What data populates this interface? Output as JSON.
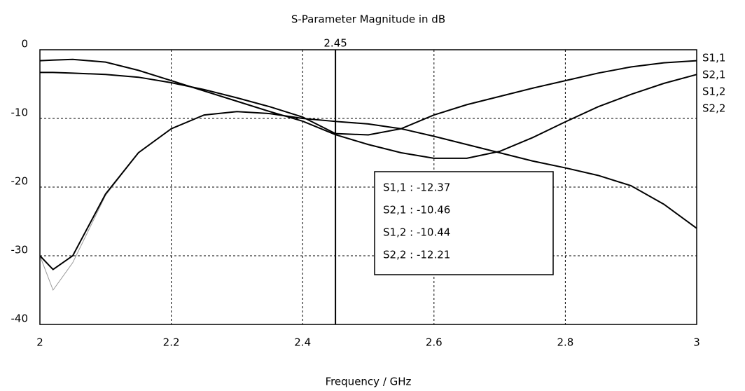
{
  "chart_data": {
    "type": "line",
    "title": "S-Parameter Magnitude in dB",
    "xlabel": "Frequency / GHz",
    "x": [
      2,
      2.02,
      2.05,
      2.1,
      2.15,
      2.2,
      2.25,
      2.3,
      2.35,
      2.4,
      2.45,
      2.5,
      2.55,
      2.6,
      2.65,
      2.7,
      2.75,
      2.8,
      2.85,
      2.9,
      2.95,
      3
    ],
    "series": [
      {
        "name": "S1,1",
        "color": "#000000",
        "values": [
          -1.6,
          -1.5,
          -1.4,
          -1.8,
          -3,
          -4.5,
          -6,
          -7.5,
          -9,
          -10.4,
          -12.37,
          -13.8,
          -15,
          -15.8,
          -15.8,
          -14.8,
          -12.8,
          -10.5,
          -8.3,
          -6.5,
          -4.9,
          -3.6
        ]
      },
      {
        "name": "S2,1",
        "color": "#999999",
        "values": [
          -30,
          -35,
          -31,
          -21.2,
          -15,
          -11.5,
          -9.5,
          -9,
          -9.3,
          -10,
          -10.46,
          -10.8,
          -11.5,
          -12.6,
          -13.8,
          -15,
          -16.2,
          -17.2,
          -18.3,
          -19.8,
          -22.5,
          -26
        ]
      },
      {
        "name": "S1,2",
        "color": "#000000",
        "values": [
          -30,
          -32,
          -30,
          -21,
          -15,
          -11.5,
          -9.5,
          -9,
          -9.3,
          -10,
          -10.44,
          -10.8,
          -11.5,
          -12.6,
          -13.8,
          -15,
          -16.2,
          -17.2,
          -18.3,
          -19.8,
          -22.5,
          -26
        ]
      },
      {
        "name": "S2,2",
        "color": "#000000",
        "values": [
          -3.3,
          -3.3,
          -3.4,
          -3.6,
          -4,
          -4.8,
          -5.8,
          -7,
          -8.3,
          -9.8,
          -12.21,
          -12.4,
          -11.5,
          -9.5,
          -8,
          -6.8,
          -5.6,
          -4.5,
          -3.4,
          -2.5,
          -1.9,
          -1.6
        ]
      }
    ],
    "xlim": [
      2,
      3
    ],
    "xticks": [
      2,
      2.2,
      2.4,
      2.6,
      2.8,
      3
    ],
    "ylim": [
      -40,
      0
    ],
    "yticks": [
      0,
      -10,
      -20,
      -30,
      -40
    ],
    "grid": true,
    "marker": {
      "x": 2.45,
      "label": "2.45",
      "readouts": [
        "S1,1 : -12.37",
        "S2,1 : -10.46",
        "S1,2 : -10.44",
        "S2,2 : -12.21"
      ]
    }
  }
}
